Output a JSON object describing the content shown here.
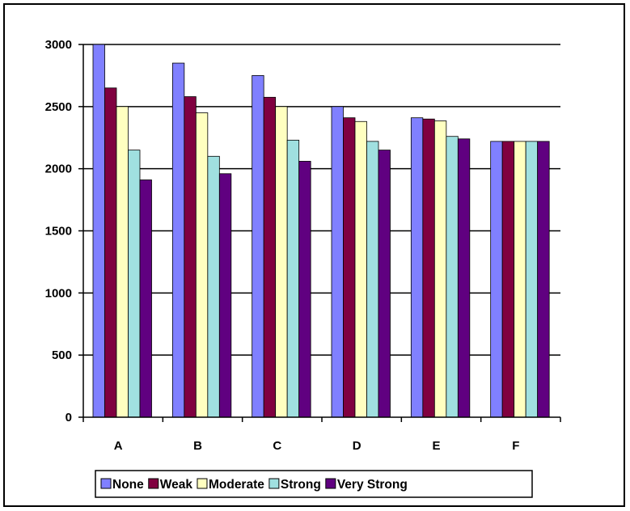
{
  "chart_data": {
    "type": "bar",
    "categories": [
      "A",
      "B",
      "C",
      "D",
      "E",
      "F"
    ],
    "series": [
      {
        "name": "None",
        "color": "#8080ff",
        "values": [
          3000,
          2850,
          2750,
          2500,
          2410,
          2220
        ]
      },
      {
        "name": "Weak",
        "color": "#800040",
        "values": [
          2650,
          2580,
          2575,
          2410,
          2400,
          2220
        ]
      },
      {
        "name": "Moderate",
        "color": "#ffffc0",
        "values": [
          2500,
          2450,
          2500,
          2380,
          2385,
          2220
        ]
      },
      {
        "name": "Strong",
        "color": "#a0e0e0",
        "values": [
          2150,
          2100,
          2230,
          2220,
          2260,
          2220
        ]
      },
      {
        "name": "Very Strong",
        "color": "#600080",
        "values": [
          1910,
          1960,
          2060,
          2150,
          2240,
          2220
        ]
      }
    ],
    "yticks": [
      "0",
      "500",
      "1000",
      "1500",
      "2000",
      "2500",
      "3000"
    ],
    "ylim": [
      0,
      3000
    ],
    "grid": true,
    "legend": "bottom",
    "title": "",
    "xlabel": "",
    "ylabel": ""
  }
}
